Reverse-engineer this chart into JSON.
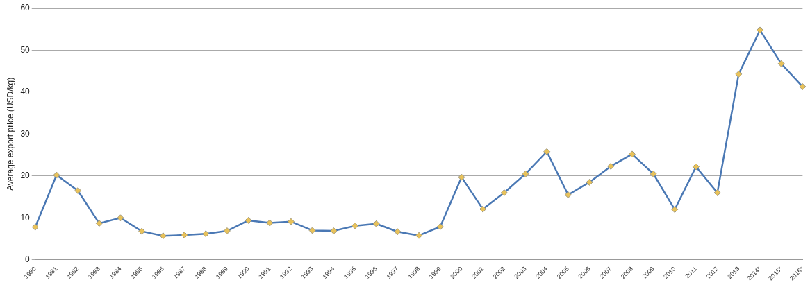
{
  "chart_data": {
    "type": "line",
    "ylabel": "Average export price (USD/kg)",
    "categories": [
      "1980",
      "1981",
      "1982",
      "1983",
      "1984",
      "1985",
      "1986",
      "1987",
      "1988",
      "1989",
      "1990",
      "1991",
      "1992",
      "1993",
      "1994",
      "1995",
      "1996",
      "1997",
      "1998",
      "1999",
      "2000",
      "2001",
      "2002",
      "2003",
      "2004",
      "2005",
      "2006",
      "2007",
      "2008",
      "2009",
      "2010",
      "2011",
      "2012",
      "2013",
      "2014*",
      "2015*",
      "2016*"
    ],
    "series": [
      {
        "color": "#4a78b4",
        "values": [
          7.8,
          20.2,
          16.5,
          8.7,
          10,
          6.8,
          5.7,
          5.9,
          6.2,
          6.9,
          9.4,
          8.8,
          9.1,
          7.0,
          6.9,
          8.1,
          8.6,
          6.7,
          5.8,
          7.9,
          19.7,
          12.1,
          16.0,
          20.5,
          25.8,
          15.5,
          18.5,
          22.3,
          25.2,
          20.5,
          12.0,
          22.2,
          16.0,
          44.3,
          54.8,
          46.8,
          41.3
        ]
      }
    ],
    "ylim": [
      0,
      60
    ],
    "yticks": [
      0,
      10,
      20,
      30,
      40,
      50,
      60
    ],
    "grid": "y",
    "legend": false,
    "marker": "diamond",
    "line_style": "solid"
  }
}
